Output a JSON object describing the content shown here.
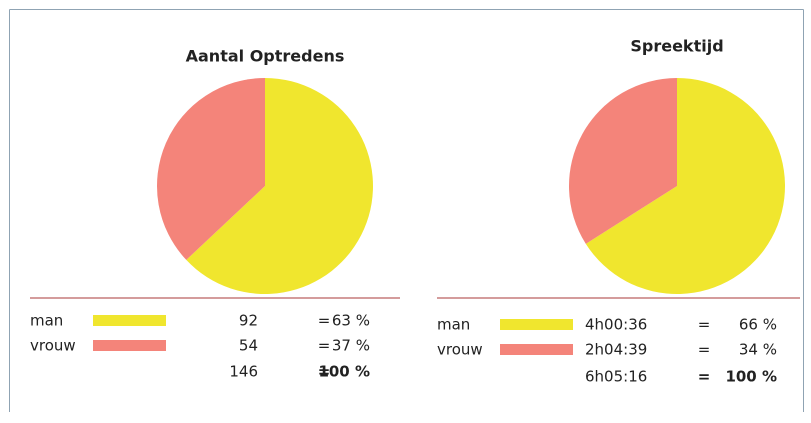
{
  "chart_data": [
    {
      "type": "pie",
      "title": "Aantal Optredens",
      "categories": [
        "man",
        "vrouw"
      ],
      "values": [
        63,
        37
      ],
      "value_labels": [
        "63 %",
        "37 %"
      ],
      "colors": [
        "#f0e62e",
        "#f4847a"
      ],
      "amounts": [
        "92",
        "54"
      ],
      "separator": "=",
      "total_amount": "146",
      "total_label": "100 %"
    },
    {
      "type": "pie",
      "title": "Spreektijd",
      "categories": [
        "man",
        "vrouw"
      ],
      "values": [
        66,
        34
      ],
      "value_labels": [
        "66 %",
        "34 %"
      ],
      "colors": [
        "#f0e62e",
        "#f4847a"
      ],
      "amounts": [
        "4h00:36",
        "2h04:39"
      ],
      "separator": "=",
      "total_amount": "6h05:16",
      "total_label": "100 %"
    }
  ]
}
